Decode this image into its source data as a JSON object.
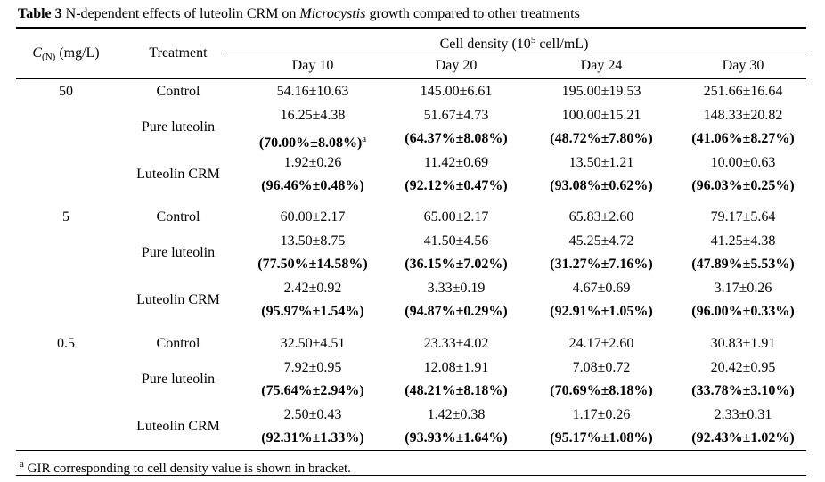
{
  "caption": {
    "label": "Table 3",
    "text_before_italic": " N-dependent effects of luteolin CRM on ",
    "italic": "Microcystis",
    "text_after_italic": " growth compared to other treatments"
  },
  "header": {
    "concentration_symbol": "C",
    "concentration_subscript": "(N)",
    "concentration_unit": " (mg/L)",
    "treatment": "Treatment",
    "cell_density_prefix": "Cell density (10",
    "cell_density_exp": "5",
    "cell_density_suffix": " cell/mL)",
    "days": [
      "Day 10",
      "Day 20",
      "Day 24",
      "Day 30"
    ]
  },
  "groups": [
    {
      "concentration": "50",
      "rows": [
        {
          "treatment": "Control",
          "density": [
            "54.16±10.63",
            "145.00±6.61",
            "195.00±19.53",
            "251.66±16.64"
          ],
          "gir": []
        },
        {
          "treatment": "Pure luteolin",
          "density": [
            "16.25±4.38",
            "51.67±4.73",
            "100.00±15.21",
            "148.33±20.82"
          ],
          "gir": [
            "(70.00%±8.08%)",
            "(64.37%±8.08%)",
            "(48.72%±7.80%)",
            "(41.06%±8.27%)"
          ],
          "gir_marker": "a"
        },
        {
          "treatment": "Luteolin CRM",
          "density": [
            "1.92±0.26",
            "11.42±0.69",
            "13.50±1.21",
            "10.00±0.63"
          ],
          "gir": [
            "(96.46%±0.48%)",
            "(92.12%±0.47%)",
            "(93.08%±0.62%)",
            "(96.03%±0.25%)"
          ]
        }
      ]
    },
    {
      "concentration": "5",
      "rows": [
        {
          "treatment": "Control",
          "density": [
            "60.00±2.17",
            "65.00±2.17",
            "65.83±2.60",
            "79.17±5.64"
          ],
          "gir": []
        },
        {
          "treatment": "Pure luteolin",
          "density": [
            "13.50±8.75",
            "41.50±4.56",
            "45.25±4.72",
            "41.25±4.38"
          ],
          "gir": [
            "(77.50%±14.58%)",
            "(36.15%±7.02%)",
            "(31.27%±7.16%)",
            "(47.89%±5.53%)"
          ]
        },
        {
          "treatment": "Luteolin CRM",
          "density": [
            "2.42±0.92",
            "3.33±0.19",
            "4.67±0.69",
            "3.17±0.26"
          ],
          "gir": [
            "(95.97%±1.54%)",
            "(94.87%±0.29%)",
            "(92.91%±1.05%)",
            "(96.00%±0.33%)"
          ]
        }
      ]
    },
    {
      "concentration": "0.5",
      "rows": [
        {
          "treatment": "Control",
          "density": [
            "32.50±4.51",
            "23.33±4.02",
            "24.17±2.60",
            "30.83±1.91"
          ],
          "gir": []
        },
        {
          "treatment": "Pure luteolin",
          "density": [
            "7.92±0.95",
            "12.08±1.91",
            "7.08±0.72",
            "20.42±0.95"
          ],
          "gir": [
            "(75.64%±2.94%)",
            "(48.21%±8.18%)",
            "(70.69%±8.18%)",
            "(33.78%±3.10%)"
          ]
        },
        {
          "treatment": "Luteolin CRM",
          "density": [
            "2.50±0.43",
            "1.42±0.38",
            "1.17±0.26",
            "2.33±0.31"
          ],
          "gir": [
            "(92.31%±1.33%)",
            "(93.93%±1.64%)",
            "(95.17%±1.08%)",
            "(92.43%±1.02%)"
          ]
        }
      ]
    }
  ],
  "footnote": {
    "marker": "a",
    "text": " GIR corresponding to cell density value is shown in bracket."
  }
}
